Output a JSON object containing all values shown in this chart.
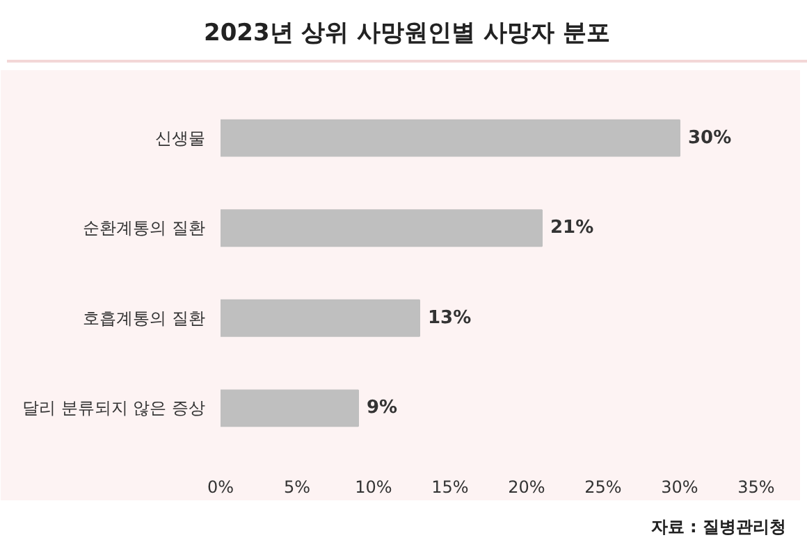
{
  "chart_data": {
    "type": "bar",
    "orientation": "horizontal",
    "title": "2023년 상위 사망원인별 사망자 분포",
    "categories": [
      "신생물",
      "순환계통의 질환",
      "호흡계통의 질환",
      "달리 분류되지 않은 증상"
    ],
    "values": [
      30,
      21,
      13,
      9
    ],
    "color": "#bfbfbf",
    "value_labels": [
      "30%",
      "21%",
      "13%",
      "9%"
    ],
    "xlim": [
      0,
      35
    ],
    "xticks": [
      {
        "value": 0,
        "label": "0%"
      },
      {
        "value": 5,
        "label": "5%"
      },
      {
        "value": 10,
        "label": "10%"
      },
      {
        "value": 15,
        "label": "15%"
      },
      {
        "value": 20,
        "label": "20%"
      },
      {
        "value": 25,
        "label": "25%"
      },
      {
        "value": 30,
        "label": "30%"
      },
      {
        "value": 35,
        "label": "35%"
      }
    ],
    "grid": false,
    "annotations": [
      "자료 : 질병관리청"
    ]
  }
}
